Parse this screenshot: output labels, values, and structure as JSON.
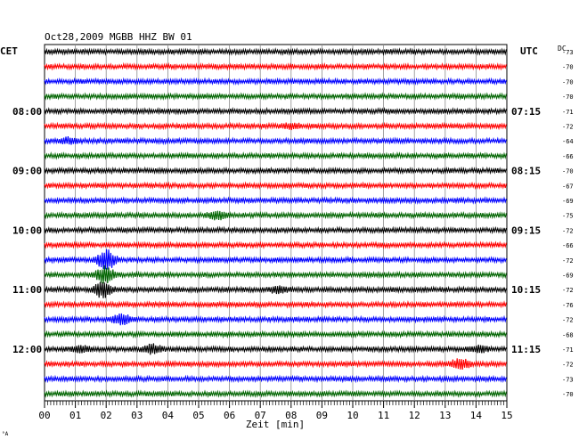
{
  "header": {
    "title": "Oct28,2009   MGBB HHZ BW 01",
    "left_zone": "CET",
    "right_zone": "UTC",
    "dc_label": "DC"
  },
  "chart_data": {
    "type": "line",
    "title": "Oct28,2009   MGBB HHZ BW 01",
    "xlabel": "Zeit [min]",
    "ylabel": "",
    "xlim": [
      0,
      15
    ],
    "x_ticks": [
      "00",
      "01",
      "02",
      "03",
      "04",
      "05",
      "06",
      "07",
      "08",
      "09",
      "10",
      "11",
      "12",
      "13",
      "14",
      "15"
    ],
    "grid": true,
    "trace_colors": [
      "#000000",
      "#ff0000",
      "#0000ff",
      "#006400"
    ],
    "left_time_labels": [
      {
        "row": 4,
        "label": "08:00"
      },
      {
        "row": 8,
        "label": "09:00"
      },
      {
        "row": 12,
        "label": "10:00"
      },
      {
        "row": 16,
        "label": "11:00"
      },
      {
        "row": 20,
        "label": "12:00"
      }
    ],
    "right_time_labels": [
      {
        "row": 4,
        "label": "07:15"
      },
      {
        "row": 8,
        "label": "08:15"
      },
      {
        "row": 12,
        "label": "09:15"
      },
      {
        "row": 16,
        "label": "10:15"
      },
      {
        "row": 20,
        "label": "11:15"
      }
    ],
    "dc_offsets": [
      -73,
      -70,
      -70,
      -70,
      -71,
      -72,
      -64,
      -66,
      -70,
      -67,
      -69,
      -75,
      -72,
      -66,
      -72,
      -69,
      -72,
      -76,
      -72,
      -68,
      -71,
      -72,
      -73,
      -70
    ],
    "events": [
      {
        "row": 14,
        "minute": 2.0,
        "amplitude": 3.2
      },
      {
        "row": 15,
        "minute": 1.95,
        "amplitude": 2.5
      },
      {
        "row": 16,
        "minute": 1.9,
        "amplitude": 2.6
      },
      {
        "row": 16,
        "minute": 7.6,
        "amplitude": 0.9
      },
      {
        "row": 18,
        "minute": 2.5,
        "amplitude": 1.5
      },
      {
        "row": 11,
        "minute": 5.6,
        "amplitude": 1.2
      },
      {
        "row": 20,
        "minute": 3.5,
        "amplitude": 1.4
      },
      {
        "row": 20,
        "minute": 1.2,
        "amplitude": 0.8
      },
      {
        "row": 20,
        "minute": 14.1,
        "amplitude": 0.8
      },
      {
        "row": 21,
        "minute": 13.5,
        "amplitude": 1.5
      },
      {
        "row": 5,
        "minute": 8.0,
        "amplitude": 0.6
      },
      {
        "row": 6,
        "minute": 0.8,
        "amplitude": 0.8
      }
    ]
  },
  "footer": {
    "corner_mark": "°A"
  }
}
